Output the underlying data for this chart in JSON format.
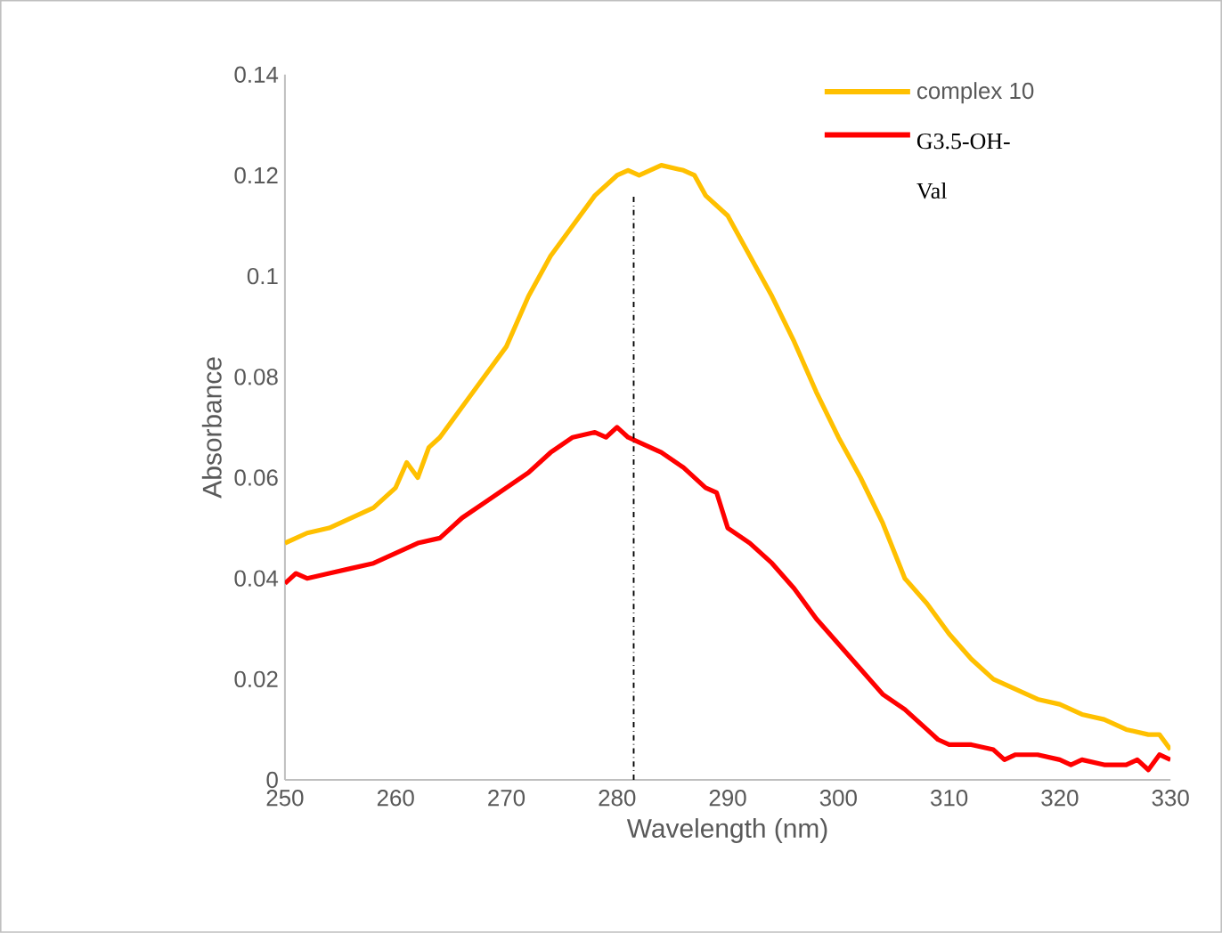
{
  "chart_data": {
    "type": "line",
    "xlabel": "Wavelength (nm)",
    "ylabel": "Absorbance",
    "xlim": [
      250,
      330
    ],
    "xticks": [
      250,
      260,
      270,
      280,
      290,
      300,
      310,
      320,
      330
    ],
    "ylim": [
      0,
      0.14
    ],
    "yticks": [
      0,
      0.02,
      0.04,
      0.06,
      0.08,
      0.1,
      0.12,
      0.14
    ],
    "grid": false,
    "legend": "top right",
    "marker": "none",
    "line_style": "solid",
    "series": [
      {
        "name": "complex 10",
        "color": "#ffc000",
        "x": [
          250,
          252,
          254,
          256,
          258,
          260,
          261,
          262,
          263,
          264,
          266,
          268,
          270,
          272,
          274,
          276,
          278,
          280,
          281,
          282,
          284,
          286,
          287,
          288,
          290,
          292,
          294,
          296,
          298,
          300,
          302,
          304,
          306,
          308,
          310,
          312,
          314,
          316,
          318,
          320,
          322,
          324,
          326,
          328,
          329,
          330
        ],
        "values": [
          0.047,
          0.049,
          0.05,
          0.052,
          0.054,
          0.058,
          0.063,
          0.06,
          0.066,
          0.068,
          0.074,
          0.08,
          0.086,
          0.096,
          0.104,
          0.11,
          0.116,
          0.12,
          0.121,
          0.12,
          0.122,
          0.121,
          0.12,
          0.116,
          0.112,
          0.104,
          0.096,
          0.087,
          0.077,
          0.068,
          0.06,
          0.051,
          0.04,
          0.035,
          0.029,
          0.024,
          0.02,
          0.018,
          0.016,
          0.015,
          0.013,
          0.012,
          0.01,
          0.009,
          0.009,
          0.006
        ]
      },
      {
        "name": "G3.5-OH-Val",
        "color": "#ff0000",
        "x": [
          250,
          251,
          252,
          254,
          256,
          258,
          260,
          262,
          264,
          266,
          268,
          270,
          272,
          274,
          276,
          278,
          279,
          280,
          281,
          282,
          284,
          286,
          288,
          289,
          290,
          292,
          294,
          296,
          298,
          300,
          302,
          304,
          306,
          308,
          309,
          310,
          312,
          314,
          315,
          316,
          318,
          320,
          321,
          322,
          324,
          326,
          327,
          328,
          329,
          330
        ],
        "values": [
          0.039,
          0.041,
          0.04,
          0.041,
          0.042,
          0.043,
          0.045,
          0.047,
          0.048,
          0.052,
          0.055,
          0.058,
          0.061,
          0.065,
          0.068,
          0.069,
          0.068,
          0.07,
          0.068,
          0.067,
          0.065,
          0.062,
          0.058,
          0.057,
          0.05,
          0.047,
          0.043,
          0.038,
          0.032,
          0.027,
          0.022,
          0.017,
          0.014,
          0.01,
          0.008,
          0.007,
          0.007,
          0.006,
          0.004,
          0.005,
          0.005,
          0.004,
          0.003,
          0.004,
          0.003,
          0.003,
          0.004,
          0.002,
          0.005,
          0.004
        ]
      }
    ],
    "ref_lines": [
      {
        "axis": "x",
        "value": 281.5,
        "color": "#000000",
        "line_style": "dashdot"
      }
    ]
  }
}
